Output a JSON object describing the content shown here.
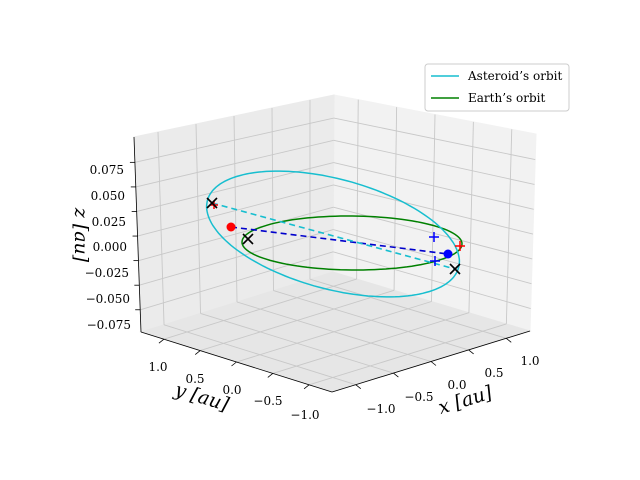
{
  "chart_data": {
    "type": "line",
    "projection": "3d",
    "title": "",
    "axes": {
      "x": {
        "label": "x [au]",
        "ticks": [
          "−1.0",
          "−0.5",
          "0.0",
          "0.5",
          "1.0"
        ]
      },
      "y": {
        "label": "y [au]",
        "ticks": [
          "1.0",
          "0.5",
          "0.0",
          "−0.5",
          "−1.0"
        ]
      },
      "z": {
        "label": "z [au]",
        "ticks": [
          "0.075",
          "0.050",
          "0.025",
          "0.000",
          "−0.025",
          "−0.050",
          "−0.075"
        ]
      }
    },
    "grid": true,
    "legend": {
      "placement": "top-right",
      "entries": [
        {
          "label": "Asteroid’s orbit",
          "color": "#17becf"
        },
        {
          "label": "Earth’s orbit",
          "color": "#008000"
        }
      ]
    },
    "series": [
      {
        "name": "Asteroid’s orbit",
        "color": "#17becf",
        "style": "solid",
        "shape": "tilted ellipse"
      },
      {
        "name": "Earth’s orbit",
        "color": "#008000",
        "style": "solid",
        "shape": "ellipse in z = 0 plane"
      }
    ],
    "connectors": [
      {
        "color": "#0000cc",
        "style": "dashed",
        "from": "red point",
        "to": "blue point"
      },
      {
        "color": "#17becf",
        "style": "dashed",
        "from": "upper-left black cross",
        "to": "lower-right black cross"
      }
    ],
    "markers": [
      {
        "kind": "point",
        "color": "#ff0000"
      },
      {
        "kind": "point",
        "color": "#0000ff"
      },
      {
        "kind": "x",
        "color": "#000000",
        "count": 3
      },
      {
        "kind": "plus",
        "color": "#0000ff",
        "count": 2
      },
      {
        "kind": "plus",
        "color": "#ff0000",
        "count": 2
      }
    ]
  }
}
